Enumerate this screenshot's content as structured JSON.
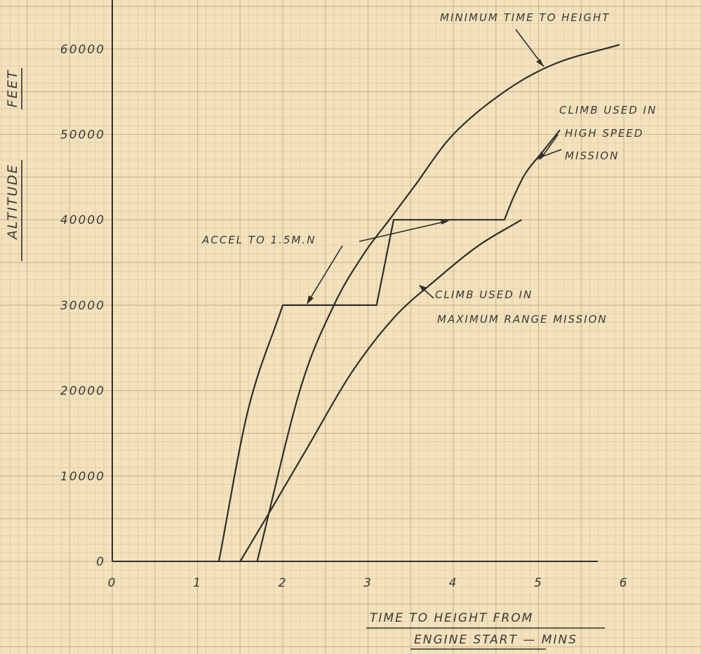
{
  "chart_data": {
    "type": "line",
    "title": "",
    "xlabel": "TIME TO HEIGHT FROM ENGINE START — MINS",
    "xlabel_lines": [
      "TIME TO HEIGHT FROM",
      "ENGINE START  —  MINS"
    ],
    "ylabel": "ALTITUDE FEET",
    "ylabel_parts": [
      "ALTITUDE",
      "FEET"
    ],
    "xlim": [
      0,
      6
    ],
    "ylim": [
      0,
      60000
    ],
    "x_ticks": [
      "0",
      "1",
      "2",
      "3",
      "4",
      "5",
      "6"
    ],
    "y_ticks": [
      "0",
      "10000",
      "20000",
      "30000",
      "40000",
      "50000",
      "60000"
    ],
    "grid": true,
    "legend": "none",
    "series": [
      {
        "name": "MINIMUM TIME TO HEIGHT",
        "points": [
          [
            1.7,
            0
          ],
          [
            2.2,
            20000
          ],
          [
            2.6,
            30000
          ],
          [
            2.95,
            36000
          ],
          [
            3.25,
            40000
          ],
          [
            3.55,
            44000
          ],
          [
            4.0,
            50000
          ],
          [
            4.6,
            55000
          ],
          [
            5.2,
            58300
          ],
          [
            5.95,
            60500
          ]
        ]
      },
      {
        "name": "CLIMB USED IN HIGH SPEED MISSION",
        "points": [
          [
            1.25,
            0
          ],
          [
            1.6,
            18000
          ],
          [
            2.0,
            30000
          ],
          [
            3.1,
            30000
          ],
          [
            3.2,
            35000
          ],
          [
            3.3,
            40000
          ],
          [
            4.6,
            40000
          ],
          [
            4.7,
            42500
          ],
          [
            4.85,
            45500
          ],
          [
            5.05,
            48000
          ],
          [
            5.25,
            50500
          ]
        ]
      },
      {
        "name": "CLIMB USED IN MAXIMUM RANGE MISSION",
        "points": [
          [
            1.5,
            0
          ],
          [
            1.8,
            5000
          ],
          [
            2.3,
            13500
          ],
          [
            2.8,
            22000
          ],
          [
            3.3,
            28500
          ],
          [
            3.8,
            33000
          ],
          [
            4.3,
            37000
          ],
          [
            4.8,
            40000
          ]
        ]
      }
    ],
    "annotations": [
      {
        "id": "min_time",
        "text": "MINIMUM TIME TO HEIGHT",
        "lines": [
          "MINIMUM TIME TO HEIGHT"
        ]
      },
      {
        "id": "high_speed",
        "text": "CLIMB USED IN HIGH SPEED MISSION",
        "lines": [
          "CLIMB USED IN",
          "HIGH SPEED",
          "MISSION"
        ]
      },
      {
        "id": "max_range",
        "text": "CLIMB USED IN MAXIMUM RANGE MISSION",
        "lines": [
          "CLIMB USED IN",
          "MAXIMUM RANGE MISSION"
        ]
      },
      {
        "id": "accel",
        "text": "ACCEL TO 1.5M.N",
        "lines": [
          "ACCEL TO 1.5M.N"
        ]
      }
    ]
  }
}
